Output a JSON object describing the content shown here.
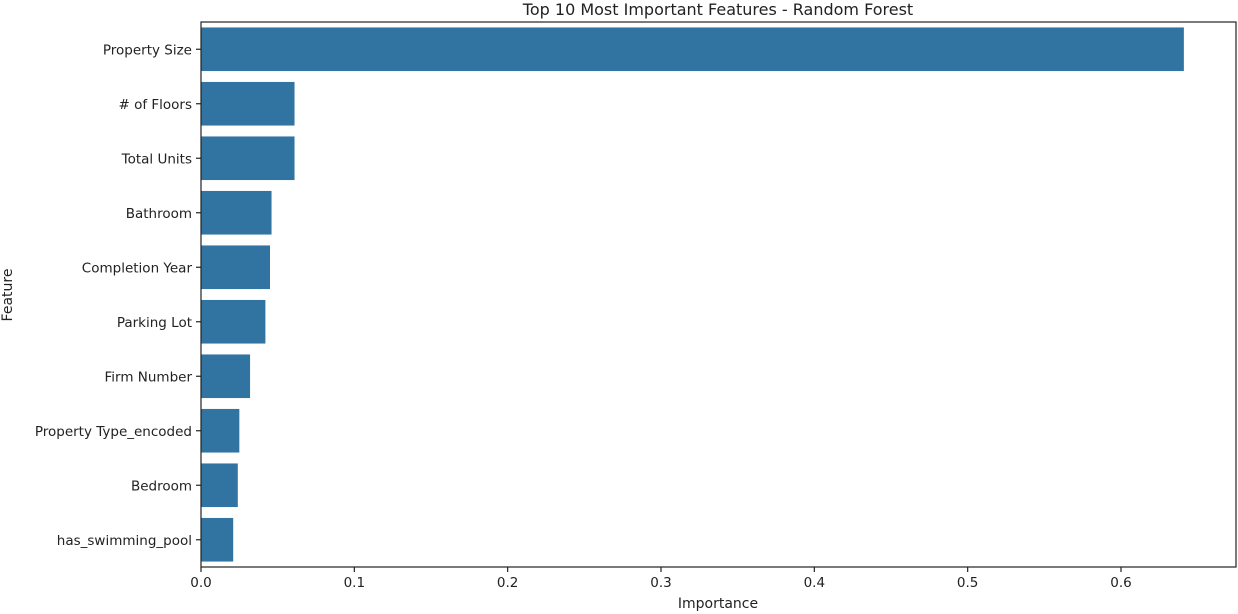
{
  "chart_data": {
    "type": "bar",
    "orientation": "horizontal",
    "title": "Top 10 Most Important Features - Random Forest",
    "xlabel": "Importance",
    "ylabel": "Feature",
    "categories": [
      "Property Size",
      "# of Floors",
      "Total Units",
      "Bathroom",
      "Completion Year",
      "Parking Lot",
      "Firm Number",
      "Property Type_encoded",
      "Bedroom",
      "has_swimming_pool"
    ],
    "values": [
      0.641,
      0.061,
      0.061,
      0.046,
      0.045,
      0.042,
      0.032,
      0.025,
      0.024,
      0.021
    ],
    "xlim": [
      0.0,
      0.675
    ],
    "xticks": [
      0.0,
      0.1,
      0.2,
      0.3,
      0.4,
      0.5,
      0.6
    ],
    "xtick_labels": [
      "0.0",
      "0.1",
      "0.2",
      "0.3",
      "0.4",
      "0.5",
      "0.6"
    ],
    "bar_color": "#3274a1",
    "grid": false,
    "legend": "none"
  }
}
